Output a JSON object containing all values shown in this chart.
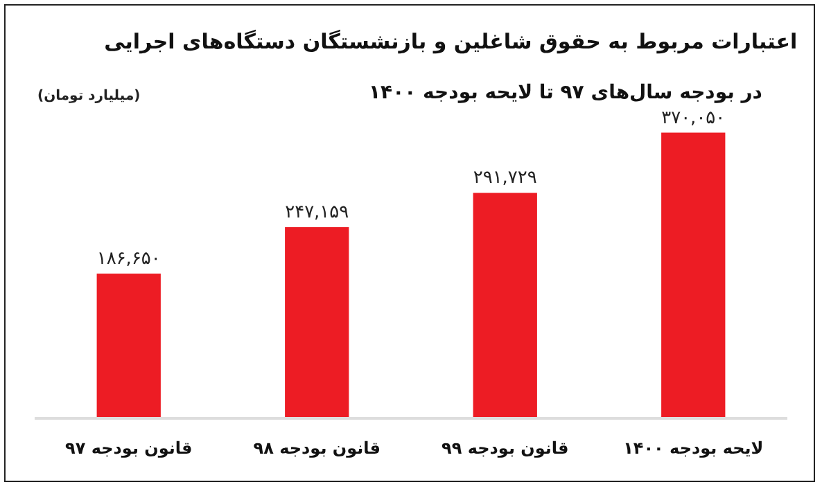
{
  "chart_data": {
    "type": "bar",
    "title": "اعتبارات مربوط به حقوق شاغلین و بازنشستگان دستگاه‌های اجرایی",
    "subtitle": "در بودجه سال‌های ۹۷ تا لایحه بودجه ۱۴۰۰",
    "annotations": [
      "(میلیارد تومان)"
    ],
    "categories": [
      "قانون بودجه ۹۷",
      "قانون بودجه ۹۸",
      "قانون بودجه ۹۹",
      "لایحه بودجه ۱۴۰۰"
    ],
    "values": [
      186650,
      247159,
      291729,
      370050
    ],
    "value_labels": [
      "۱۸۶,۶۵۰",
      "۲۴۷,۱۵۹",
      "۲۹۱,۷۲۹",
      "۳۷۰,۰۵۰"
    ],
    "color": "#ed1c24",
    "tick_labels": "x",
    "grid": false
  }
}
